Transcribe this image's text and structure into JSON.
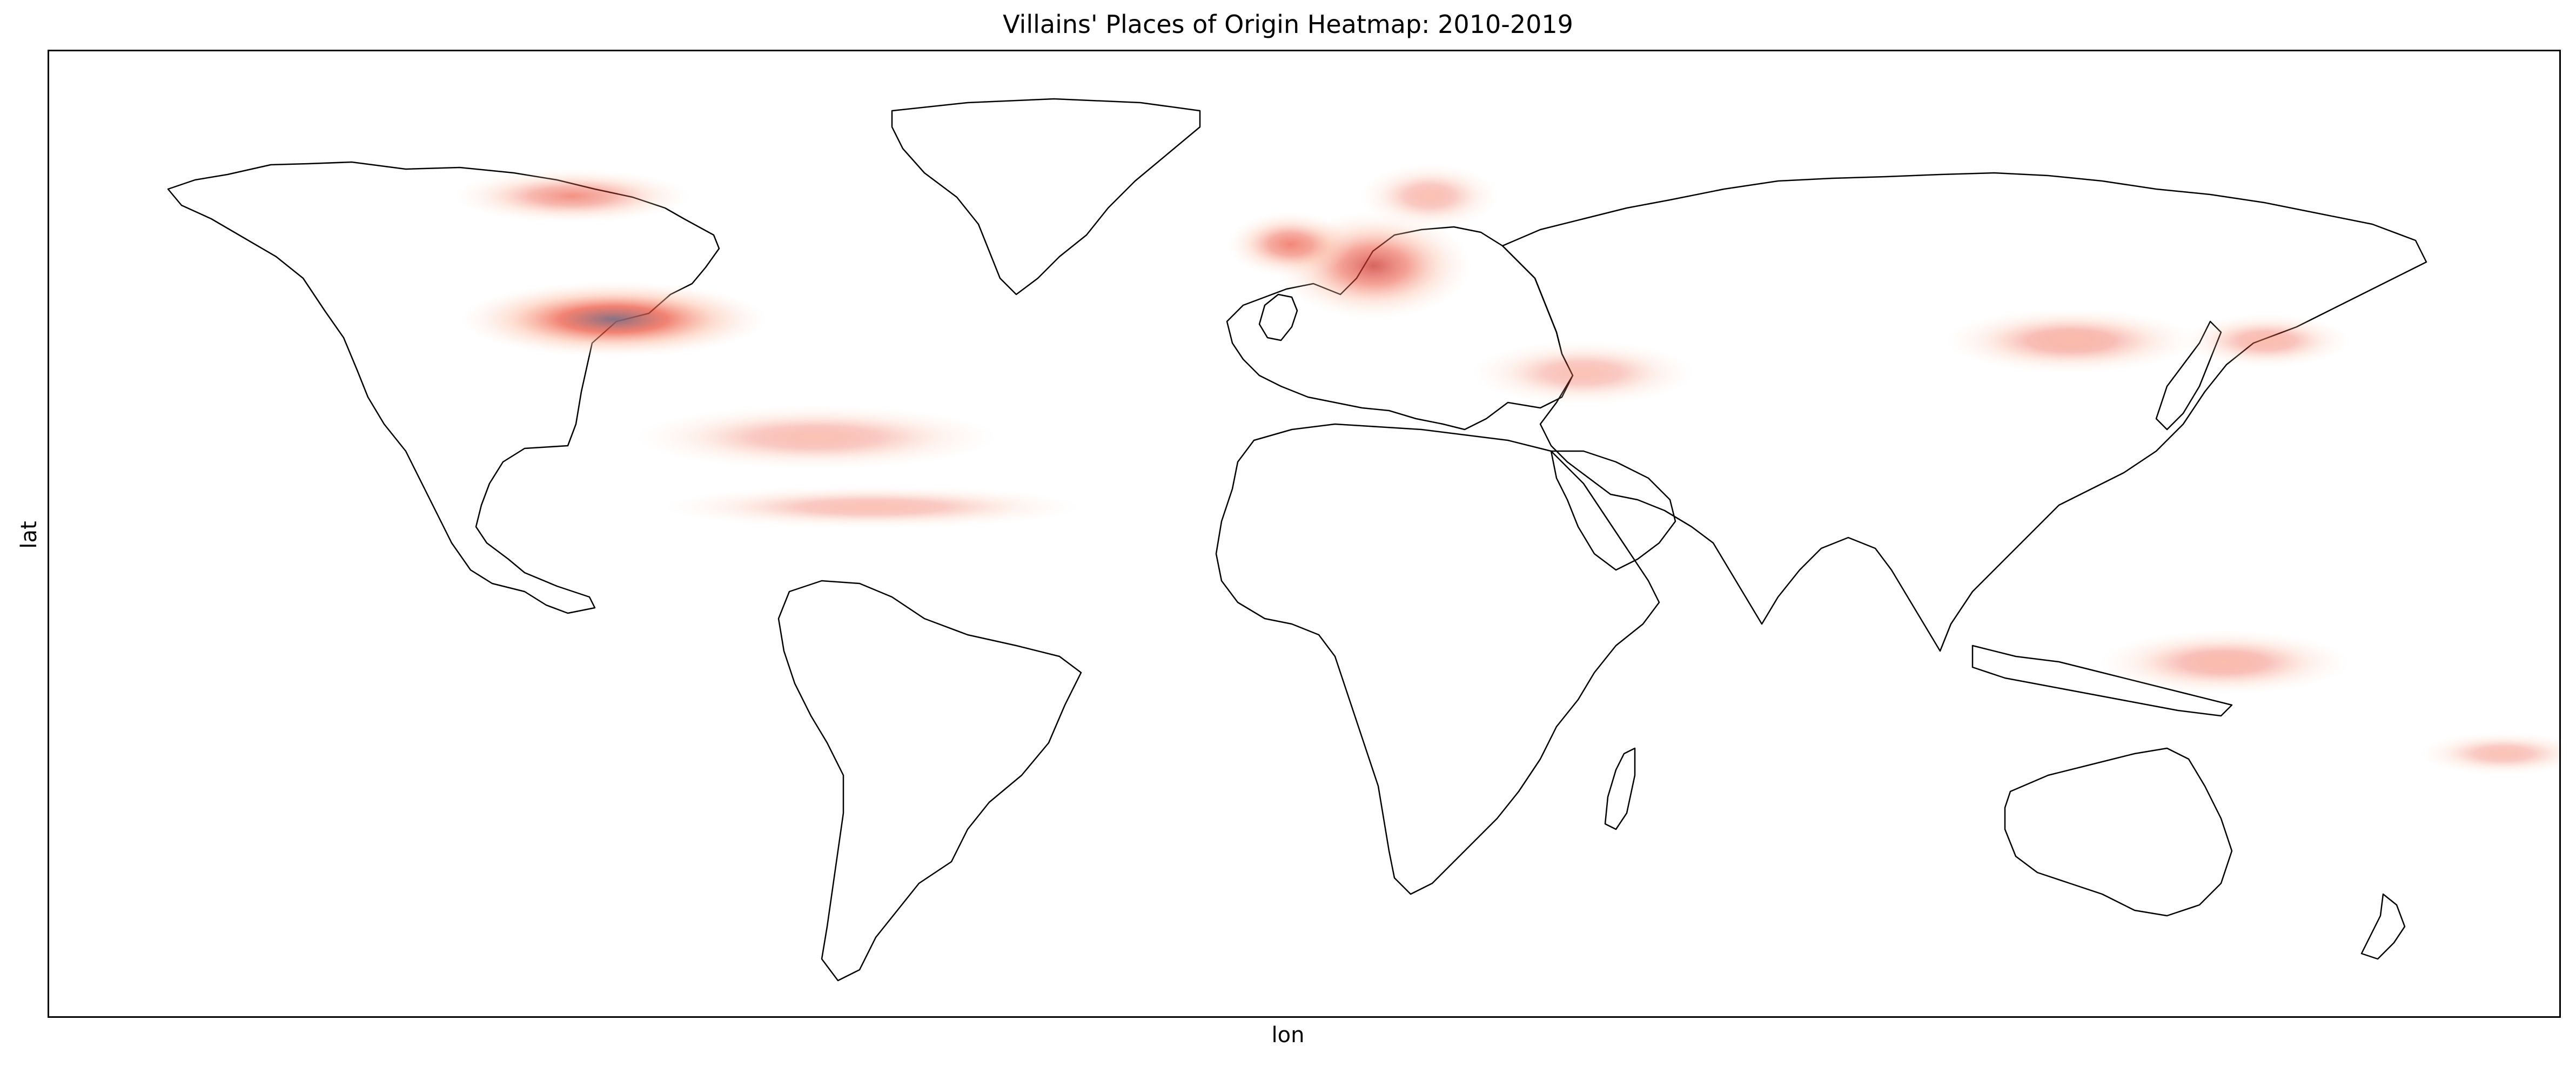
{
  "chart_data": {
    "type": "heatmap",
    "title": "Villains' Places of Origin Heatmap: 2010-2019",
    "xlabel": "lon",
    "ylabel": "lat",
    "projection": "equirectangular",
    "grid": false,
    "colormap": [
      "#fde3d6",
      "#fcb79c",
      "#f98a6d",
      "#ec4d37",
      "#c9302a",
      "#7d6b80"
    ],
    "hotspots": [
      {
        "region": "Central United States",
        "lon": -99,
        "lat": 40,
        "spread_lon": 22,
        "spread_lat": 7,
        "intensity": 1.0
      },
      {
        "region": "Central Europe",
        "lon": 10,
        "lat": 50,
        "spread_lon": 14,
        "spread_lat": 10,
        "intensity": 0.6
      },
      {
        "region": "British Isles",
        "lon": -2,
        "lat": 54,
        "spread_lon": 9,
        "spread_lat": 6,
        "intensity": 0.45
      },
      {
        "region": "Northern Canada",
        "lon": -105,
        "lat": 63,
        "spread_lon": 17,
        "spread_lat": 5,
        "intensity": 0.32
      },
      {
        "region": "China",
        "lon": 110,
        "lat": 36,
        "spread_lon": 18,
        "spread_lat": 6,
        "intensity": 0.25
      },
      {
        "region": "Japan",
        "lon": 138,
        "lat": 36,
        "spread_lon": 12,
        "spread_lat": 5,
        "intensity": 0.18
      },
      {
        "region": "Australia",
        "lon": 132,
        "lat": -24,
        "spread_lon": 18,
        "spread_lat": 6,
        "intensity": 0.22
      },
      {
        "region": "New Zealand",
        "lon": 172,
        "lat": -41,
        "spread_lon": 12,
        "spread_lat": 4,
        "intensity": 0.1
      },
      {
        "region": "Caribbean",
        "lon": -70,
        "lat": 18,
        "spread_lon": 26,
        "spread_lat": 6,
        "intensity": 0.12
      },
      {
        "region": "Northern South America",
        "lon": -62,
        "lat": 5,
        "spread_lon": 30,
        "spread_lat": 4,
        "intensity": 0.1
      },
      {
        "region": "Middle East",
        "lon": 40,
        "lat": 30,
        "spread_lon": 16,
        "spread_lat": 6,
        "intensity": 0.1
      },
      {
        "region": "Scandinavia",
        "lon": 18,
        "lat": 63,
        "spread_lon": 10,
        "spread_lat": 6,
        "intensity": 0.12
      }
    ],
    "xlim": [
      -180,
      180
    ],
    "ylim": [
      -90,
      90
    ]
  }
}
